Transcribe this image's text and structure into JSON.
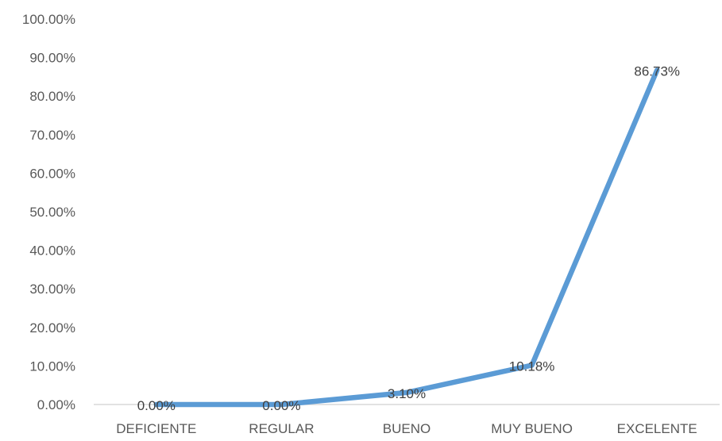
{
  "chart_data": {
    "type": "line",
    "title": "",
    "xlabel": "",
    "ylabel": "",
    "categories": [
      "DEFICIENTE",
      "REGULAR",
      "BUENO",
      "MUY BUENO",
      "EXCELENTE"
    ],
    "series": [
      {
        "values": [
          0.0,
          0.0,
          3.1,
          10.18,
          86.73
        ],
        "data_labels": [
          "0.00%",
          "0.00%",
          "3.10%",
          "10.18%",
          "86.73%"
        ],
        "color": "#5b9bd5"
      }
    ],
    "ylim": [
      0,
      100
    ],
    "yticks": [
      "0.00%",
      "10.00%",
      "20.00%",
      "30.00%",
      "40.00%",
      "50.00%",
      "60.00%",
      "70.00%",
      "80.00%",
      "90.00%",
      "100.00%"
    ],
    "grid": false,
    "legend": "none",
    "axis_color": "#d9d9d9",
    "text_color": "#595959"
  }
}
